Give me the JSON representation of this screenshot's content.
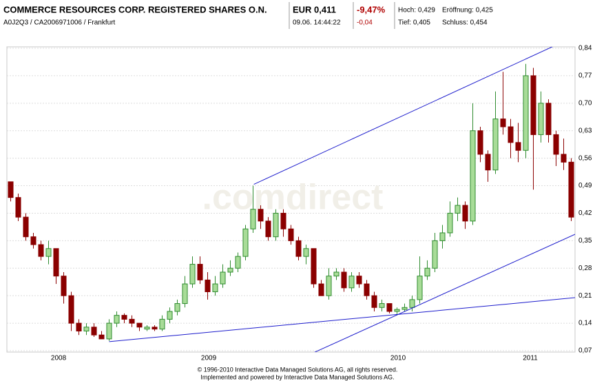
{
  "header": {
    "title": "COMMERCE RESOURCES CORP. REGISTERED SHARES O.N.",
    "ids": "A0J2Q3 / CA2006971006 / Frankfurt",
    "price": "EUR 0,411",
    "time": "09.06. 14:44:22",
    "change_pct": "-9,47%",
    "change_abs": "-0,04",
    "high": "Hoch: 0,429",
    "open": "Eröffnung: 0,425",
    "low": "Tief: 0,405",
    "close": "Schluss: 0,454"
  },
  "chart_data": {
    "type": "candlestick",
    "watermark": ".comdirect",
    "open": [
      0.5,
      0.46,
      0.41,
      0.36,
      0.34,
      0.31,
      0.33,
      0.26,
      0.21,
      0.14,
      0.12,
      0.13,
      0.11,
      0.1,
      0.14,
      0.16,
      0.15,
      0.14,
      0.125,
      0.13,
      0.125,
      0.15,
      0.17,
      0.19,
      0.24,
      0.29,
      0.25,
      0.22,
      0.24,
      0.27,
      0.28,
      0.31,
      0.38,
      0.43,
      0.4,
      0.36,
      0.42,
      0.38,
      0.35,
      0.31,
      0.33,
      0.24,
      0.21,
      0.26,
      0.27,
      0.23,
      0.26,
      0.24,
      0.21,
      0.18,
      0.19,
      0.17,
      0.175,
      0.18,
      0.2,
      0.26,
      0.28,
      0.35,
      0.37,
      0.42,
      0.44,
      0.4,
      0.63,
      0.57,
      0.53,
      0.66,
      0.64,
      0.6,
      0.58,
      0.77,
      0.62,
      0.7,
      0.62,
      0.57,
      0.55
    ],
    "high": [
      0.5,
      0.47,
      0.42,
      0.37,
      0.35,
      0.35,
      0.33,
      0.27,
      0.22,
      0.15,
      0.14,
      0.14,
      0.12,
      0.15,
      0.17,
      0.165,
      0.16,
      0.14,
      0.135,
      0.135,
      0.16,
      0.18,
      0.2,
      0.26,
      0.31,
      0.31,
      0.27,
      0.26,
      0.29,
      0.3,
      0.32,
      0.39,
      0.49,
      0.44,
      0.41,
      0.43,
      0.43,
      0.39,
      0.36,
      0.34,
      0.33,
      0.25,
      0.28,
      0.28,
      0.28,
      0.27,
      0.27,
      0.25,
      0.22,
      0.2,
      0.19,
      0.18,
      0.19,
      0.21,
      0.31,
      0.3,
      0.37,
      0.39,
      0.45,
      0.46,
      0.45,
      0.7,
      0.64,
      0.58,
      0.73,
      0.78,
      0.66,
      0.65,
      0.8,
      0.79,
      0.73,
      0.71,
      0.63,
      0.61,
      0.56
    ],
    "low": [
      0.45,
      0.4,
      0.35,
      0.33,
      0.3,
      0.29,
      0.24,
      0.19,
      0.12,
      0.11,
      0.11,
      0.105,
      0.1,
      0.095,
      0.13,
      0.14,
      0.13,
      0.12,
      0.12,
      0.12,
      0.12,
      0.14,
      0.16,
      0.18,
      0.23,
      0.24,
      0.2,
      0.21,
      0.23,
      0.26,
      0.27,
      0.3,
      0.37,
      0.38,
      0.35,
      0.35,
      0.36,
      0.34,
      0.3,
      0.29,
      0.23,
      0.21,
      0.2,
      0.25,
      0.22,
      0.22,
      0.23,
      0.2,
      0.17,
      0.17,
      0.165,
      0.16,
      0.17,
      0.17,
      0.19,
      0.25,
      0.27,
      0.33,
      0.36,
      0.4,
      0.38,
      0.39,
      0.55,
      0.5,
      0.52,
      0.62,
      0.56,
      0.55,
      0.56,
      0.48,
      0.6,
      0.6,
      0.54,
      0.53,
      0.4
    ],
    "close": [
      0.46,
      0.41,
      0.36,
      0.34,
      0.31,
      0.33,
      0.26,
      0.21,
      0.14,
      0.12,
      0.13,
      0.11,
      0.1,
      0.14,
      0.16,
      0.15,
      0.14,
      0.13,
      0.13,
      0.125,
      0.15,
      0.17,
      0.19,
      0.24,
      0.29,
      0.25,
      0.22,
      0.24,
      0.27,
      0.28,
      0.31,
      0.38,
      0.43,
      0.4,
      0.36,
      0.42,
      0.38,
      0.35,
      0.31,
      0.33,
      0.24,
      0.21,
      0.26,
      0.27,
      0.23,
      0.26,
      0.24,
      0.21,
      0.18,
      0.19,
      0.17,
      0.175,
      0.18,
      0.2,
      0.26,
      0.28,
      0.35,
      0.37,
      0.42,
      0.44,
      0.4,
      0.63,
      0.57,
      0.53,
      0.66,
      0.64,
      0.6,
      0.58,
      0.77,
      0.62,
      0.7,
      0.62,
      0.57,
      0.55,
      0.41
    ],
    "up_color": "#2e8b2e",
    "down_color": "#8b0000",
    "trendlines": [
      {
        "color": "#1a1acc",
        "x": [
          32.6,
          75.3
        ],
        "y": [
          0.4935,
          0.873
        ]
      },
      {
        "color": "#1a1acc",
        "x": [
          13.5,
          75
        ],
        "y": [
          0.093,
          0.205
        ]
      },
      {
        "color": "#1a1acc",
        "x": [
          37.3,
          75.3
        ],
        "y": [
          0.037,
          0.369
        ]
      }
    ],
    "xlim": [
      0,
      75
    ],
    "xticks": [
      {
        "value": 6.82,
        "label": "2008"
      },
      {
        "value": 26.64,
        "label": "2009"
      },
      {
        "value": 51.64,
        "label": "2010"
      },
      {
        "value": 69.09,
        "label": "2011"
      }
    ],
    "ylim": [
      0.07,
      0.84
    ],
    "yticks": [
      {
        "value": 0.07,
        "label": "0,07"
      },
      {
        "value": 0.14,
        "label": "0,14"
      },
      {
        "value": 0.21,
        "label": "0,21"
      },
      {
        "value": 0.28,
        "label": "0,28"
      },
      {
        "value": 0.35,
        "label": "0,35"
      },
      {
        "value": 0.42,
        "label": "0,42"
      },
      {
        "value": 0.49,
        "label": "0,49"
      },
      {
        "value": 0.56,
        "label": "0,56"
      },
      {
        "value": 0.63,
        "label": "0,63"
      },
      {
        "value": 0.7,
        "label": "0,70"
      },
      {
        "value": 0.77,
        "label": "0,77"
      },
      {
        "value": 0.84,
        "label": "0,84"
      }
    ],
    "grid": true
  },
  "footer": {
    "line1": "© 1996-2010 Interactive Data Managed Solutions AG, all rights reserved.",
    "line2": "Implemented and powered by Interactive Data Managed Solutions AG."
  }
}
